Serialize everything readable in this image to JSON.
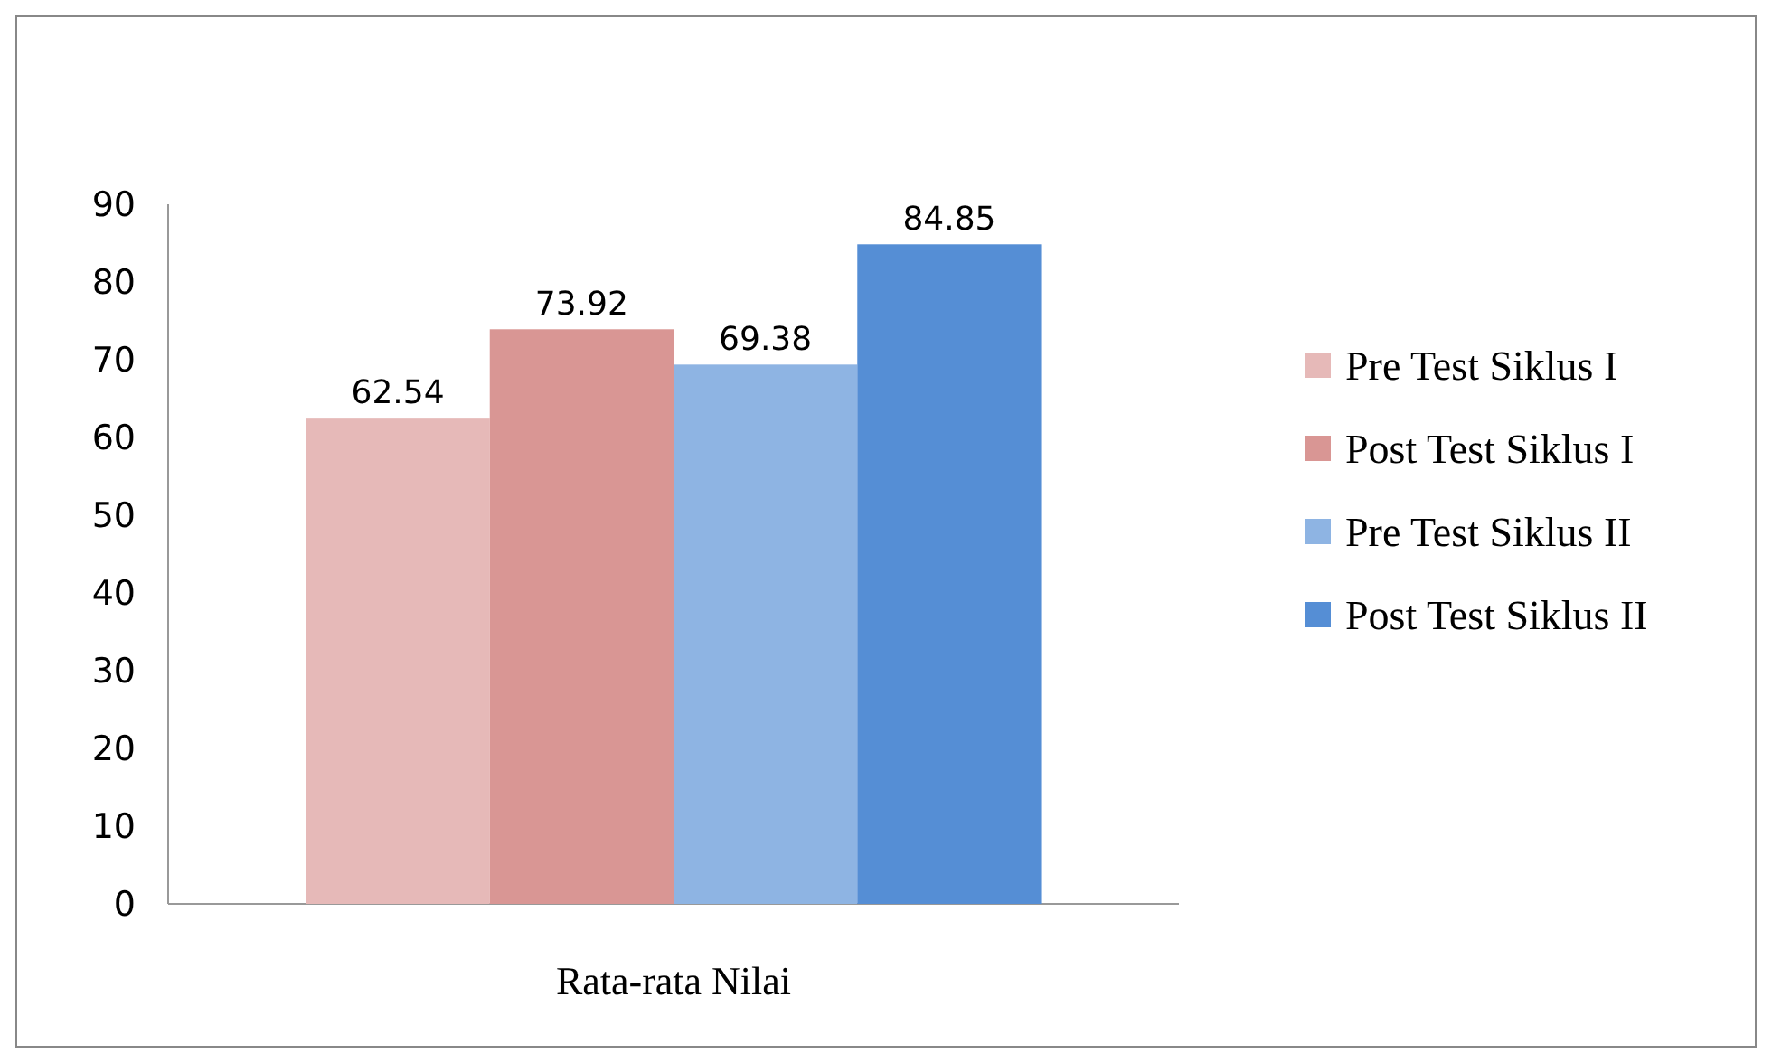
{
  "chart_data": {
    "type": "bar",
    "categories": [
      "Rata-rata Nilai"
    ],
    "series": [
      {
        "name": "Pre Test Siklus I",
        "color": "#e6b9b8",
        "values": [
          62.54
        ]
      },
      {
        "name": "Post Test Siklus I",
        "color": "#d99694",
        "values": [
          73.92
        ]
      },
      {
        "name": "Pre Test Siklus II",
        "color": "#8eb4e3",
        "values": [
          69.38
        ]
      },
      {
        "name": "Post Test Siklus II",
        "color": "#558ed5",
        "values": [
          84.85
        ]
      }
    ],
    "ylim": [
      0,
      90
    ],
    "yticks": [
      0,
      10,
      20,
      30,
      40,
      50,
      60,
      70,
      80,
      90
    ],
    "data_labels": true,
    "legend": "right",
    "grid": false
  }
}
